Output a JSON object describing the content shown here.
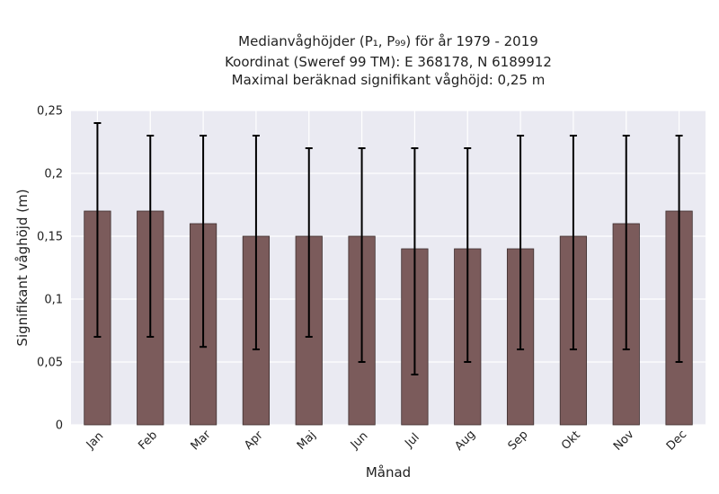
{
  "chart_data": {
    "type": "bar",
    "title_lines": [
      "Medianvåghöjder (P₁, P₉₉) för år 1979 - 2019",
      "Koordinat (Sweref 99 TM): E 368178, N 6189912",
      "Maximal beräknad signifikant våghöjd: 0,25 m"
    ],
    "xlabel": "Månad",
    "ylabel": "Signifikant våghöjd (m)",
    "categories": [
      "Jan",
      "Feb",
      "Mar",
      "Apr",
      "Maj",
      "Jun",
      "Jul",
      "Aug",
      "Sep",
      "Okt",
      "Nov",
      "Dec"
    ],
    "values": [
      0.17,
      0.17,
      0.16,
      0.15,
      0.15,
      0.15,
      0.14,
      0.14,
      0.14,
      0.15,
      0.16,
      0.17
    ],
    "error_low": [
      0.07,
      0.07,
      0.062,
      0.06,
      0.07,
      0.05,
      0.04,
      0.05,
      0.06,
      0.06,
      0.06,
      0.05
    ],
    "error_high": [
      0.24,
      0.23,
      0.23,
      0.23,
      0.22,
      0.22,
      0.22,
      0.22,
      0.23,
      0.23,
      0.23,
      0.23
    ],
    "ylim": [
      0,
      0.25
    ],
    "yticks": [
      0,
      0.05,
      0.1,
      0.15,
      0.2,
      0.25
    ],
    "ytick_labels": [
      "0",
      "0,05",
      "0,1",
      "0,15",
      "0,2",
      "0,25"
    ],
    "grid": true,
    "bar_color": "#7b5b5b",
    "background_color": "#eaeaf2",
    "grid_color": "#ffffff",
    "error_color": "#000000"
  }
}
